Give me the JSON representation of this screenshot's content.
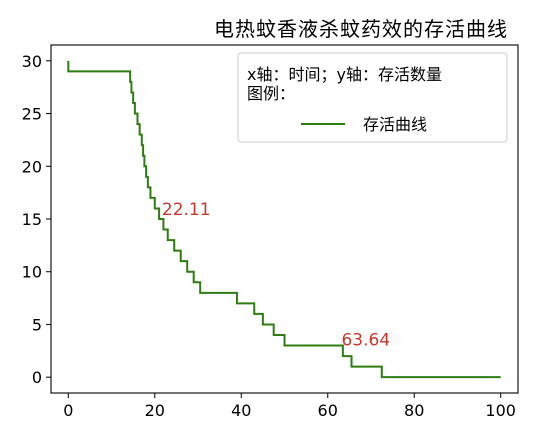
{
  "chart_data": {
    "type": "line",
    "step": "post",
    "title": "电热蚊香液杀蚊药效的存活曲线",
    "xlabel": "",
    "ylabel": "",
    "xlim": [
      -4,
      104
    ],
    "ylim": [
      -1.5,
      31.5
    ],
    "xticks": [
      0,
      20,
      40,
      60,
      80,
      100
    ],
    "yticks": [
      0,
      5,
      10,
      15,
      20,
      25,
      30
    ],
    "grid": false,
    "legend": {
      "placement": "top-right",
      "title": "x轴：时间；y轴：存活数量\n图例：",
      "entries": [
        {
          "label": "存活曲线",
          "color": "#2e7d12"
        }
      ]
    },
    "series": [
      {
        "name": "存活曲线",
        "color": "#2e7d12",
        "x": [
          0,
          0,
          14,
          14.3,
          14.6,
          15,
          15.4,
          16,
          16.5,
          17,
          17.3,
          17.6,
          18,
          18.4,
          19,
          20,
          21,
          22,
          23,
          24.5,
          26,
          27.5,
          29,
          30.5,
          39,
          43,
          45,
          47.5,
          50,
          57,
          63.5,
          65.5,
          72.5,
          100
        ],
        "y": [
          30,
          29,
          29,
          28,
          27,
          26,
          25,
          24,
          23,
          22,
          21,
          20,
          19,
          18,
          17,
          16,
          15,
          14,
          13,
          12,
          11,
          10,
          9,
          8,
          7,
          6,
          5,
          4,
          3,
          3,
          2,
          1,
          0,
          0
        ]
      }
    ],
    "annotations": [
      {
        "text": "22.11",
        "x": 22.11,
        "y": 15.2,
        "color": "#c8372d"
      },
      {
        "text": "63.64",
        "x": 63.64,
        "y": 2.8,
        "color": "#c8372d"
      }
    ]
  }
}
